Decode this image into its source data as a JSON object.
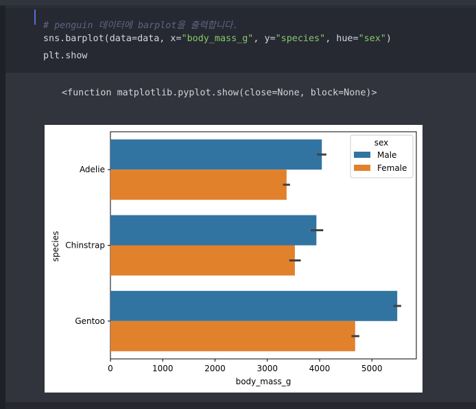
{
  "code": {
    "comment": "# penguin 데이터에 barplot을 출력합니다.",
    "line1": {
      "fn": "sns.barplot(data",
      "eq1": "=",
      "arg_data": "data, x",
      "eq2": "=",
      "x_str": "\"body_mass_g\"",
      "sep1": ", y",
      "eq3": "=",
      "y_str": "\"species\"",
      "sep2": ", hue",
      "eq4": "=",
      "hue_str": "\"sex\"",
      "close": ")"
    },
    "line2": "plt.show"
  },
  "output": {
    "repr": "<function matplotlib.pyplot.show(close=None, block=None)>"
  },
  "colors": {
    "male": "#3274a1",
    "female": "#e1812c",
    "errbar": "#424242"
  },
  "chart_data": {
    "type": "bar",
    "orientation": "horizontal",
    "xlabel": "body_mass_g",
    "ylabel": "species",
    "xlim": [
      0,
      5850
    ],
    "xticks": [
      0,
      1000,
      2000,
      3000,
      4000,
      5000
    ],
    "categories": [
      "Adelie",
      "Chinstrap",
      "Gentoo"
    ],
    "legend": {
      "title": "sex",
      "placement": "top-right"
    },
    "series": [
      {
        "name": "Male",
        "values": [
          4043,
          3939,
          5485
        ],
        "ci": [
          [
            3950,
            4130
          ],
          [
            3830,
            4070
          ],
          [
            5410,
            5560
          ]
        ]
      },
      {
        "name": "Female",
        "values": [
          3369,
          3527,
          4680
        ],
        "ci": [
          [
            3300,
            3435
          ],
          [
            3420,
            3640
          ],
          [
            4610,
            4760
          ]
        ]
      }
    ]
  }
}
